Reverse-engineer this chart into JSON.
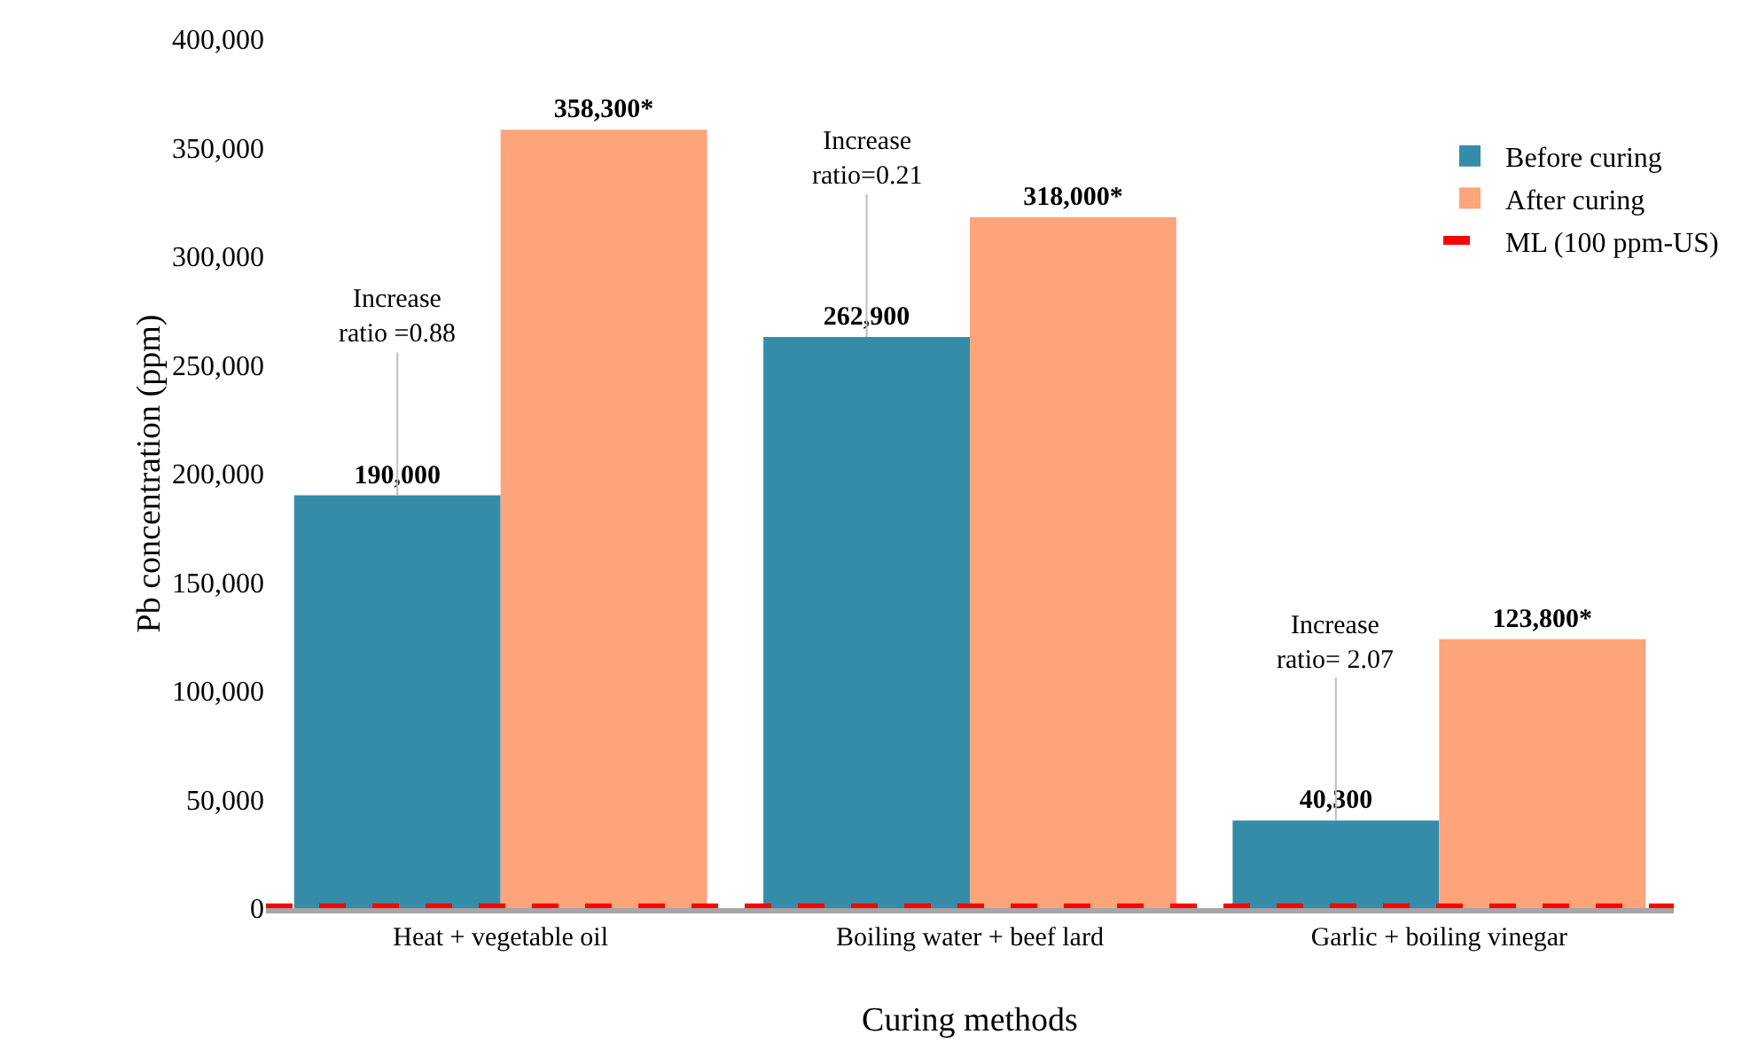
{
  "chart_data": {
    "type": "bar",
    "xlabel": "Curing methods",
    "ylabel": "Pb concentration (ppm)",
    "categories": [
      "Heat + vegetable oil",
      "Boiling water + beef lard",
      "Garlic + boiling vinegar"
    ],
    "series": [
      {
        "name": "Before curing",
        "color": "#348ca9",
        "values": [
          190000,
          262900,
          40300
        ],
        "value_labels": [
          "190,000",
          "262,900",
          "40,300"
        ]
      },
      {
        "name": "After curing",
        "color": "#fda47b",
        "values": [
          358300,
          318000,
          123800
        ],
        "value_labels": [
          "358,300*",
          "318,000*",
          "123,800*"
        ]
      }
    ],
    "ylim": [
      0,
      400000
    ],
    "yticks": [
      0,
      {
        "value": 50000,
        "label": "50,000"
      },
      {
        "value": 100000,
        "label": "100,000"
      },
      {
        "value": 150000,
        "label": "150,000"
      },
      {
        "value": 200000,
        "label": "200,000"
      },
      {
        "value": 250000,
        "label": "250,000"
      },
      {
        "value": 300000,
        "label": "300,000"
      },
      {
        "value": 350000,
        "label": "350,000"
      },
      {
        "value": 400000,
        "label": "400,000"
      }
    ],
    "ref_lines": [
      {
        "axis": "y",
        "value": 100,
        "label": "ML (100 ppm-US)",
        "color": "#ff0000",
        "line_style": "dashed"
      }
    ],
    "annotations": [
      {
        "text": "Increase\nratio =0.88",
        "y": 190000
      },
      {
        "text": "Increase\nratio=0.21",
        "y": 262900
      },
      {
        "text": "Increase\nratio= 2.07",
        "y": 40300
      }
    ],
    "grid": false,
    "legend": "top right"
  }
}
